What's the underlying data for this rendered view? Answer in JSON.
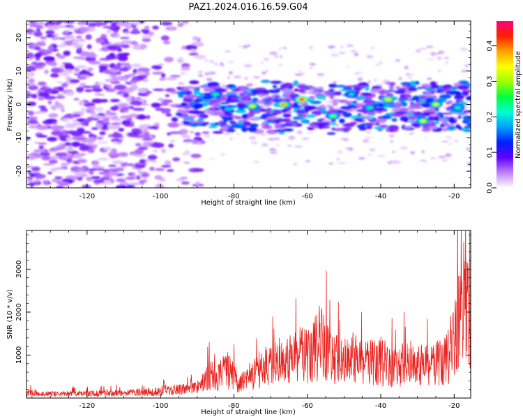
{
  "title": "PAZ1.2024.016.16.59.G04",
  "chart_data": [
    {
      "type": "heatmap",
      "xlabel": "Height of straight line (km)",
      "ylabel": "Frequency (Hz)",
      "xlim": [
        -136.5,
        -15.5
      ],
      "ylim": [
        -25,
        25
      ],
      "xticks": [
        -120,
        -100,
        -80,
        -60,
        -40,
        -20
      ],
      "yticks": [
        20,
        10,
        0,
        -10,
        -20
      ],
      "colorbar": {
        "label": "Normalized spectral amplitude",
        "range": [
          0,
          0.47
        ],
        "ticks": [
          0.0,
          0.1,
          0.2,
          0.3,
          0.4
        ],
        "colormap": [
          "#ffffff",
          "#c080ff",
          "#6000ff",
          "#0020ff",
          "#00a0ff",
          "#00ffd0",
          "#00ff40",
          "#a0ff00",
          "#ffff00",
          "#ffa000",
          "#ff2000",
          "#ff0080"
        ]
      },
      "band_center_hz": 0,
      "note_regions": [
        {
          "x_range": [
            -136.5,
            -95
          ],
          "description": "diffuse noise across full frequency range"
        },
        {
          "x_range": [
            -95,
            -15.5
          ],
          "frequency_band_hz": [
            -8,
            6
          ],
          "description": "signal band"
        }
      ],
      "peaks": [
        {
          "x": -61.5,
          "y": 1.5,
          "value": 0.45
        },
        {
          "x": -66.5,
          "y": 0,
          "value": 0.4
        },
        {
          "x": -75,
          "y": -0.5,
          "value": 0.35
        },
        {
          "x": -38,
          "y": 1.5,
          "value": 0.38
        },
        {
          "x": -25,
          "y": 0,
          "value": 0.35
        },
        {
          "x": -28.5,
          "y": -5,
          "value": 0.35
        },
        {
          "x": -53,
          "y": -3.5,
          "value": 0.3
        },
        {
          "x": -43,
          "y": -1,
          "value": 0.25
        },
        {
          "x": -85,
          "y": 3,
          "value": 0.25
        },
        {
          "x": -48,
          "y": 3,
          "value": 0.22
        },
        {
          "x": -19,
          "y": -1,
          "value": 0.25
        }
      ]
    },
    {
      "type": "line",
      "xlabel": "Height of straight line (km)",
      "ylabel": "SNR (10 * v/v)",
      "xlim": [
        -136.5,
        -15.5
      ],
      "ylim": [
        0,
        3900
      ],
      "xticks": [
        -120,
        -100,
        -80,
        -60,
        -40,
        -20
      ],
      "yticks": [
        1000,
        2000,
        3000
      ],
      "color": "#e8221e",
      "series": [
        {
          "x": [
            -136,
            -130,
            -124,
            -118,
            -112,
            -106,
            -100,
            -95,
            -90,
            -88,
            -86,
            -84,
            -82,
            -80,
            -78,
            -76,
            -74,
            -72,
            -70,
            -68,
            -66,
            -64,
            -62,
            -60,
            -58,
            -56,
            -54,
            -52,
            -50,
            -48,
            -46,
            -44,
            -42,
            -40,
            -38,
            -36,
            -34,
            -32,
            -30,
            -28,
            -26,
            -24,
            -22,
            -20,
            -19,
            -18,
            -17,
            -16
          ],
          "y": [
            150,
            120,
            130,
            140,
            150,
            170,
            200,
            260,
            320,
            500,
            700,
            650,
            900,
            600,
            450,
            550,
            750,
            950,
            900,
            1100,
            1050,
            1300,
            1400,
            1200,
            1450,
            1800,
            1300,
            1150,
            1050,
            1250,
            1200,
            1100,
            1050,
            1100,
            1000,
            900,
            1000,
            1050,
            950,
            1100,
            1000,
            1050,
            1150,
            1800,
            2500,
            2200,
            3800,
            2000
          ]
        }
      ]
    }
  ]
}
